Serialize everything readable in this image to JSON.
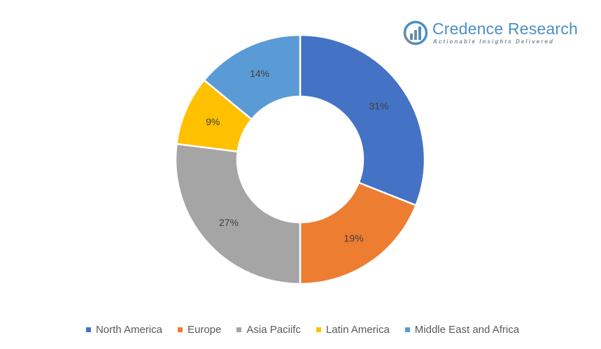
{
  "logo": {
    "name": "Credence Research",
    "tagline": "Actionable Insights Delivered",
    "color": "#4b8fc6"
  },
  "chart_data": {
    "type": "pie",
    "donut": true,
    "title": "",
    "categories": [
      "North America",
      "Europe",
      "Asia Paciifc",
      "Latin America",
      "Middle East and Africa"
    ],
    "values": [
      31,
      19,
      27,
      9,
      14
    ],
    "labels": [
      "31%",
      "19%",
      "27%",
      "9%",
      "14%"
    ],
    "colors": [
      "#4472c4",
      "#ed7d31",
      "#a5a5a5",
      "#ffc000",
      "#5b9bd5"
    ],
    "legend": "bottom"
  }
}
